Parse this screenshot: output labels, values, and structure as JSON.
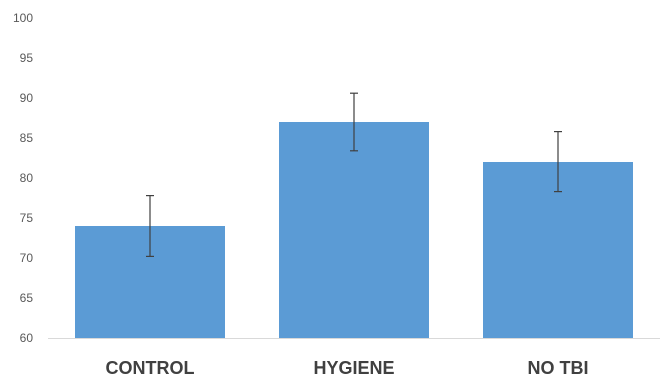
{
  "chart_data": {
    "type": "bar",
    "title": "",
    "xlabel": "",
    "ylabel": "",
    "categories": [
      "CONTROL",
      "HYGIENE",
      "NO TBI"
    ],
    "values": [
      74,
      87,
      82
    ],
    "error_bars": [
      {
        "low": 70.2,
        "high": 77.8
      },
      {
        "low": 83.4,
        "high": 90.6
      },
      {
        "low": 78.3,
        "high": 85.8
      }
    ],
    "ylim": [
      60,
      100
    ],
    "y_ticks": [
      "60",
      "65",
      "70",
      "75",
      "80",
      "85",
      "90",
      "95",
      "100"
    ],
    "grid": false,
    "legend": "none",
    "colors": {
      "bar": "#5b9bd5",
      "error_bar": "#404040",
      "axis": "#d9d9d9"
    }
  }
}
